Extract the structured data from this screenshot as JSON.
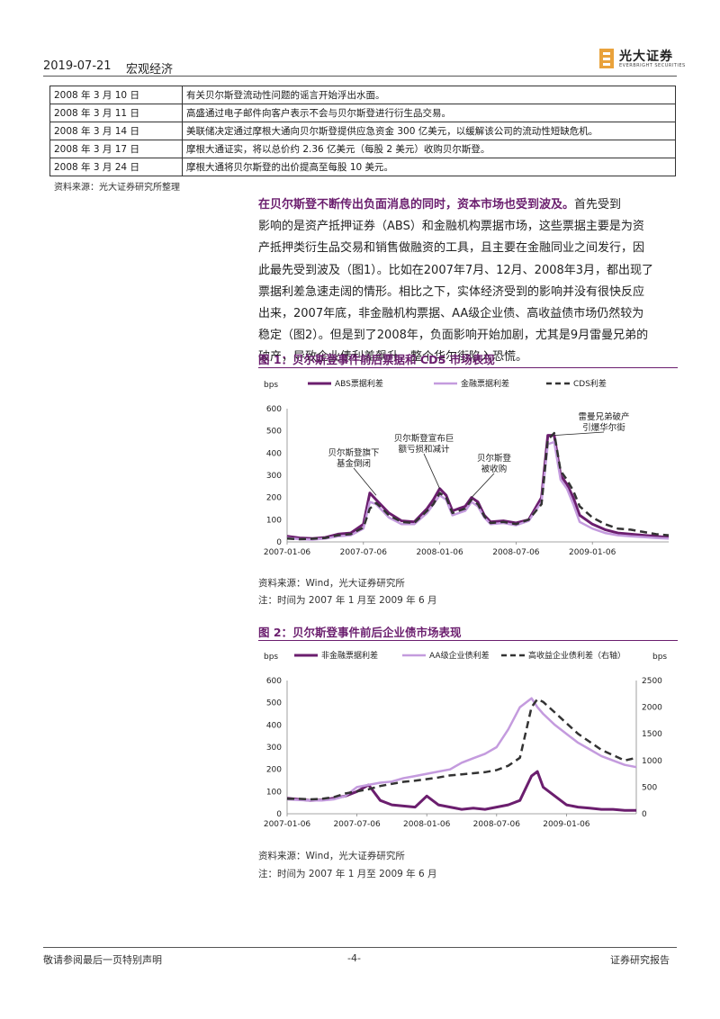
{
  "header": {
    "date": "2019-07-21",
    "section": "宏观经济",
    "logo_cn": "光大证券",
    "logo_en": "EVERBRIGHT SECURITIES"
  },
  "event_table": {
    "rows": [
      {
        "date": "2008 年 3 月 10 日",
        "event": "有关贝尔斯登流动性问题的谣言开始浮出水面。"
      },
      {
        "date": "2008 年 3 月 11 日",
        "event": "高盛通过电子邮件向客户表示不会与贝尔斯登进行衍生品交易。"
      },
      {
        "date": "2008 年 3 月 14 日",
        "event": "美联储决定通过摩根大通向贝尔斯登提供应急资金 300 亿美元，以缓解该公司的流动性短缺危机。"
      },
      {
        "date": "2008 年 3 月 17 日",
        "event": "摩根大通证实，将以总价约 2.36 亿美元（每股 2 美元）收购贝尔斯登。"
      },
      {
        "date": "2008 年 3 月 24 日",
        "event": "摩根大通将贝尔斯登的出价提高至每股 10 美元。"
      }
    ],
    "source": "资料来源：光大证券研究所整理"
  },
  "paragraph": {
    "lead": "在贝尔斯登不断传出负面消息的同时，资本市场也受到波及。",
    "line1": "首先受到",
    "line2": "影响的是资产抵押证券（ABS）和金融机构票据市场，这些票据主要是为资",
    "line3": "产抵押类衍生品交易和销售做融资的工具，且主要在金融同业之间发行，因",
    "line4": "此最先受到波及（图1）。比如在2007年7月、12月、2008年3月，都出现了",
    "line5": "票据利差急速走阔的情形。相比之下，实体经济受到的影响并没有很快反应",
    "line6": "出来，2007年底，非金融机构票据、AA级企业债、高收益债市场仍然较为",
    "line7": "稳定（图2）。但是到了2008年，负面影响开始加剧，尤其是9月雷曼兄弟的",
    "line8": "破产，导致企业债利差飙升，整个华尔街陷入恐慌。"
  },
  "figure1": {
    "title": "图 1：贝尔斯登事件前后票据和 CDS 市场表现",
    "source": "资料来源：Wind，光大证券研究所",
    "note": "注：时间为 2007 年 1 月至 2009 年 6 月",
    "annotations": {
      "a1_l1": "贝尔斯登旗下",
      "a1_l2": "基金倒闭",
      "a2_l1": "贝尔斯登宣布巨",
      "a2_l2": "额亏损和减计",
      "a3_l1": "贝尔斯登",
      "a3_l2": "被收购",
      "a4_l1": "雷曼兄弟破产",
      "a4_l2": "引爆华尔街"
    }
  },
  "figure2": {
    "title": "图 2：贝尔斯登事件前后企业债市场表现",
    "source": "资料来源：Wind，光大证券研究所",
    "note": "注：时间为 2007 年 1 月至 2009 年 6 月"
  },
  "chart_data": [
    {
      "type": "line",
      "ylabel": "bps",
      "ylim": [
        0,
        600
      ],
      "yticks": [
        0,
        100,
        200,
        300,
        400,
        500,
        600
      ],
      "xticks": [
        "2007-01-06",
        "2007-07-06",
        "2008-01-06",
        "2008-07-06",
        "2009-01-06"
      ],
      "legend_position": "top",
      "x_months": [
        0,
        1,
        2,
        3,
        4,
        5,
        6,
        6.5,
        7,
        7.5,
        8,
        9,
        10,
        11,
        11.5,
        12,
        12.5,
        13,
        14,
        14.5,
        15,
        15.5,
        16,
        17,
        18,
        19,
        20,
        20.5,
        21,
        21.5,
        22,
        22.5,
        23,
        24,
        25,
        26,
        27,
        28,
        29,
        30
      ],
      "series": [
        {
          "name": "ABS票据利差",
          "color": "#6b1e6e",
          "style": "solid",
          "width": 3,
          "values": [
            25,
            18,
            15,
            20,
            35,
            40,
            80,
            220,
            190,
            160,
            130,
            95,
            90,
            150,
            190,
            240,
            210,
            140,
            160,
            200,
            180,
            120,
            90,
            95,
            85,
            100,
            200,
            480,
            480,
            300,
            260,
            200,
            120,
            80,
            55,
            40,
            35,
            30,
            25,
            20
          ]
        },
        {
          "name": "金融票据利差",
          "color": "#c49bde",
          "style": "solid",
          "width": 2.5,
          "values": [
            18,
            12,
            10,
            15,
            25,
            30,
            60,
            180,
            170,
            140,
            110,
            80,
            80,
            130,
            170,
            210,
            190,
            120,
            140,
            180,
            160,
            110,
            80,
            85,
            75,
            95,
            180,
            440,
            450,
            280,
            240,
            170,
            90,
            60,
            40,
            30,
            25,
            22,
            18,
            15
          ]
        },
        {
          "name": "CDS利差",
          "color": "#333333",
          "style": "dash",
          "width": 2.5,
          "values": [
            15,
            12,
            14,
            18,
            30,
            35,
            65,
            150,
            175,
            150,
            120,
            90,
            85,
            140,
            170,
            220,
            200,
            130,
            150,
            190,
            170,
            115,
            85,
            90,
            80,
            100,
            170,
            460,
            490,
            320,
            280,
            230,
            160,
            110,
            80,
            60,
            55,
            45,
            35,
            30
          ]
        }
      ]
    },
    {
      "type": "line",
      "ylabel": "bps",
      "ylabel_right": "bps",
      "ylim": [
        0,
        600
      ],
      "ylim_right": [
        0,
        2500
      ],
      "yticks": [
        0,
        100,
        200,
        300,
        400,
        500,
        600
      ],
      "yticks_right": [
        0,
        500,
        1000,
        1500,
        2000,
        2500
      ],
      "xticks": [
        "2007-01-06",
        "2007-07-06",
        "2008-01-06",
        "2008-07-06",
        "2009-01-06"
      ],
      "legend_position": "top",
      "x_months": [
        0,
        1,
        2,
        3,
        4,
        5,
        6,
        7,
        8,
        9,
        10,
        11,
        12,
        13,
        14,
        15,
        16,
        17,
        18,
        19,
        20,
        21,
        21.5,
        22,
        23,
        24,
        25,
        26,
        27,
        28,
        29,
        30
      ],
      "series": [
        {
          "name": "非金融票据利差",
          "color": "#6b1e6e",
          "style": "solid",
          "width": 3,
          "axis": "left",
          "values": [
            70,
            65,
            60,
            62,
            70,
            80,
            100,
            130,
            60,
            40,
            35,
            30,
            80,
            40,
            30,
            20,
            25,
            20,
            30,
            40,
            60,
            170,
            190,
            120,
            80,
            40,
            30,
            25,
            20,
            20,
            15,
            15
          ]
        },
        {
          "name": "AA级企业债利差",
          "color": "#c49bde",
          "style": "solid",
          "width": 2.5,
          "axis": "left",
          "values": [
            65,
            62,
            60,
            60,
            65,
            80,
            120,
            130,
            140,
            145,
            160,
            170,
            180,
            190,
            200,
            230,
            250,
            270,
            300,
            380,
            480,
            520,
            480,
            450,
            400,
            360,
            320,
            290,
            260,
            240,
            220,
            210
          ]
        },
        {
          "name": "高收益企业债利差（右轴）",
          "color": "#333333",
          "style": "dash",
          "width": 2.5,
          "axis": "right",
          "values": [
            280,
            280,
            270,
            280,
            310,
            380,
            420,
            460,
            520,
            560,
            600,
            620,
            650,
            680,
            720,
            740,
            760,
            780,
            820,
            900,
            1050,
            2000,
            2150,
            2100,
            1900,
            1700,
            1500,
            1350,
            1200,
            1100,
            1000,
            1050
          ]
        }
      ]
    }
  ],
  "footer": {
    "left": "敬请参阅最后一页特别声明",
    "center": "-4-",
    "right": "证券研究报告"
  }
}
